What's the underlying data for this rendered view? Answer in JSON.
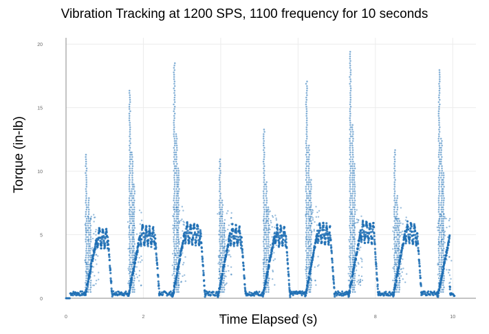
{
  "chart_data": {
    "type": "scatter",
    "title": "Vibration Tracking at 1200 SPS, 1100 frequency for 10 seconds",
    "xlabel": "Time Elapsed (s)",
    "ylabel": "Torque (in-lb)",
    "xlim": [
      0,
      10.6
    ],
    "ylim": [
      0,
      20.5
    ],
    "xticks": [
      0,
      2,
      4,
      6,
      8,
      10
    ],
    "yticks": [
      0,
      5,
      10,
      15,
      20
    ],
    "grid": true,
    "color": "#1f6fb4",
    "peak_x": [
      0.52,
      1.65,
      2.8,
      3.98,
      5.12,
      6.22,
      7.35,
      8.5,
      9.65
    ],
    "peak_values": [
      11.4,
      16.5,
      18.6,
      11.0,
      13.3,
      17.2,
      19.5,
      11.7,
      18.1
    ],
    "cycle_start_x": [
      0.48,
      1.6,
      2.75,
      3.92,
      5.08,
      6.18,
      7.3,
      8.45,
      9.6
    ],
    "cycle_end_x": [
      1.2,
      2.42,
      3.6,
      4.65,
      5.8,
      6.95,
      8.08,
      9.2,
      9.95
    ],
    "plateau_values": [
      4.8,
      5.0,
      5.2,
      5.0,
      5.0,
      5.2,
      5.3,
      5.2,
      4.8
    ]
  }
}
